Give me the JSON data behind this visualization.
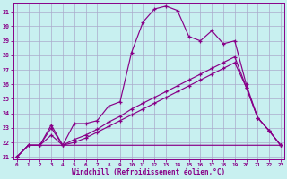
{
  "background_color": "#c8f0f0",
  "grid_color": "#aaaacc",
  "line_color": "#880088",
  "xlim": [
    -0.3,
    23.3
  ],
  "ylim": [
    20.85,
    31.65
  ],
  "yticks": [
    21,
    22,
    23,
    24,
    25,
    26,
    27,
    28,
    29,
    30,
    31
  ],
  "xticks": [
    0,
    1,
    2,
    3,
    4,
    5,
    6,
    7,
    8,
    9,
    10,
    11,
    12,
    13,
    14,
    15,
    16,
    17,
    18,
    19,
    20,
    21,
    22,
    23
  ],
  "xlabel": "Windchill (Refroidissement éolien,°C)",
  "c1_x": [
    0,
    1,
    2,
    3,
    4,
    5,
    6,
    7,
    8,
    9,
    10,
    11,
    12,
    13,
    14,
    15,
    16,
    17,
    18,
    19,
    20,
    21,
    22,
    23
  ],
  "c1_y": [
    21.0,
    21.8,
    21.8,
    23.2,
    21.8,
    23.3,
    23.3,
    23.5,
    24.5,
    24.8,
    28.2,
    30.3,
    31.2,
    31.4,
    31.1,
    29.3,
    29.0,
    29.7,
    28.8,
    29.0,
    26.0,
    23.7,
    22.8,
    21.8
  ],
  "c2_x": [
    0,
    1,
    2,
    3,
    4,
    5,
    6,
    7,
    8,
    9,
    10,
    11,
    12,
    13,
    14,
    15,
    16,
    17,
    18,
    19,
    20,
    21,
    22,
    23
  ],
  "c2_y": [
    21.0,
    21.8,
    21.8,
    23.0,
    21.8,
    22.2,
    22.5,
    22.9,
    23.4,
    23.8,
    24.3,
    24.7,
    25.1,
    25.5,
    25.9,
    26.3,
    26.7,
    27.1,
    27.5,
    27.9,
    25.8,
    23.7,
    22.8,
    21.8
  ],
  "c3_x": [
    0,
    1,
    2,
    3,
    4,
    5,
    6,
    7,
    8,
    9,
    10,
    11,
    12,
    13,
    14,
    15,
    16,
    17,
    18,
    19,
    20,
    21,
    22,
    23
  ],
  "c3_y": [
    21.0,
    21.8,
    21.8,
    21.8,
    21.8,
    21.8,
    21.8,
    21.8,
    21.8,
    21.8,
    21.8,
    21.8,
    21.8,
    21.8,
    21.8,
    21.8,
    21.8,
    21.8,
    21.8,
    21.8,
    21.8,
    21.8,
    21.8,
    21.8
  ],
  "c4_x": [
    0,
    1,
    2,
    3,
    4,
    5,
    6,
    7,
    8,
    9,
    10,
    11,
    12,
    13,
    14,
    15,
    16,
    17,
    18,
    19,
    20,
    21,
    22,
    23
  ],
  "c4_y": [
    21.0,
    21.8,
    21.8,
    22.5,
    21.8,
    22.0,
    22.3,
    22.7,
    23.1,
    23.5,
    23.9,
    24.3,
    24.7,
    25.1,
    25.5,
    25.9,
    26.3,
    26.7,
    27.1,
    27.5,
    25.8,
    23.7,
    22.8,
    21.8
  ]
}
